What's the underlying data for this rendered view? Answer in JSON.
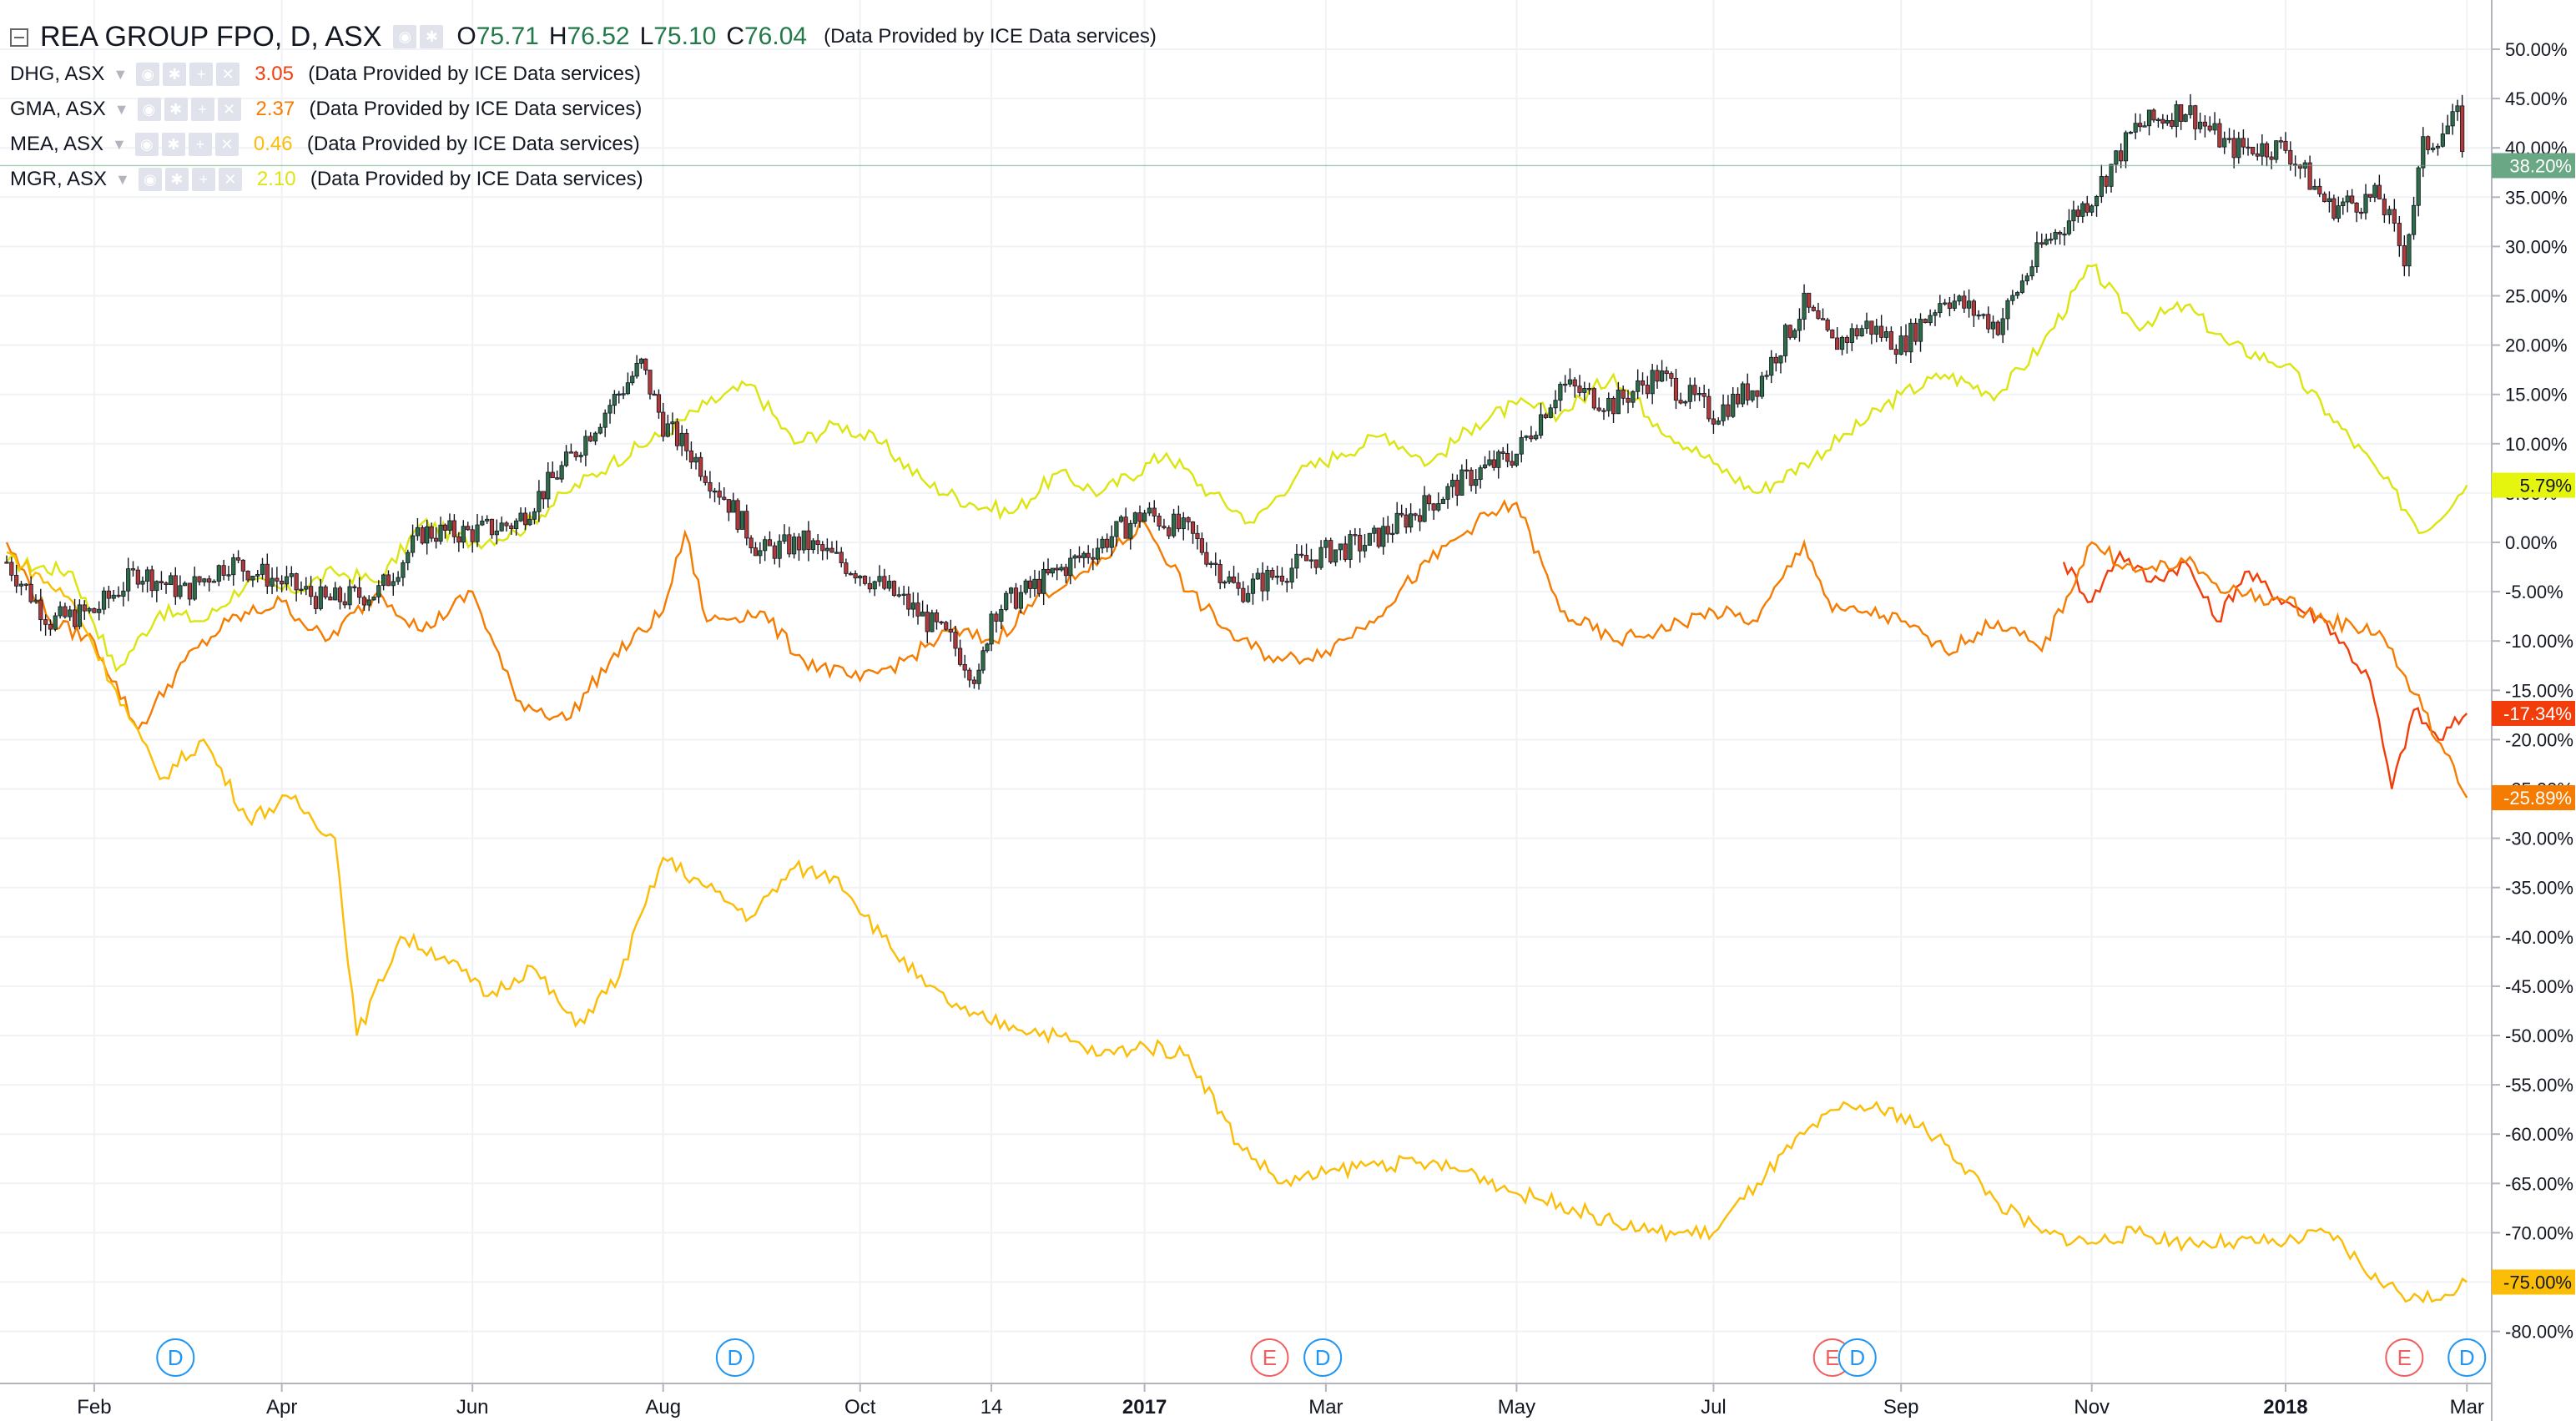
{
  "header": {
    "title": "REA GROUP FPO, D, ASX",
    "ohlc": [
      {
        "label": "O",
        "value": "75.71"
      },
      {
        "label": "H",
        "value": "76.52"
      },
      {
        "label": "L",
        "value": "75.10"
      },
      {
        "label": "C",
        "value": "76.04"
      }
    ],
    "provider": "(Data Provided by ICE Data services)"
  },
  "comparisons": [
    {
      "symbol": "DHG, ASX",
      "value": "3.05",
      "color": "#f23d0a",
      "provider": "(Data Provided by ICE Data services)"
    },
    {
      "symbol": "GMA, ASX",
      "value": "2.37",
      "color": "#f57c00",
      "provider": "(Data Provided by ICE Data services)"
    },
    {
      "symbol": "MEA, ASX",
      "value": "0.46",
      "color": "#fbbd05",
      "provider": "(Data Provided by ICE Data services)"
    },
    {
      "symbol": "MGR, ASX",
      "value": "2.10",
      "color": "#dbe50f",
      "provider": "(Data Provided by ICE Data services)"
    }
  ],
  "price_badges": [
    {
      "text": "38.20%",
      "value": 38.2,
      "bg": "#6aa784",
      "fg": "#ffffff"
    },
    {
      "text": "5.79%",
      "value": 5.79,
      "bg": "#e6f50d",
      "fg": "#131722"
    },
    {
      "text": "-17.34%",
      "value": -17.34,
      "bg": "#f23d0a",
      "fg": "#ffffff"
    },
    {
      "text": "-25.89%",
      "value": -25.89,
      "bg": "#f57c00",
      "fg": "#ffffff"
    },
    {
      "text": "-75.00%",
      "value": -75.0,
      "bg": "#fbbd05",
      "fg": "#131722"
    }
  ],
  "event_markers": [
    {
      "label": "D",
      "x": "2016-02-27",
      "kind": "dividend"
    },
    {
      "label": "D",
      "x": "2016-08-24",
      "kind": "dividend"
    },
    {
      "label": "E",
      "x": "2017-02-11",
      "kind": "earnings"
    },
    {
      "label": "D",
      "x": "2017-02-28",
      "kind": "dividend"
    },
    {
      "label": "E",
      "x": "2017-08-10",
      "kind": "earnings"
    },
    {
      "label": "D",
      "x": "2017-08-18",
      "kind": "dividend"
    },
    {
      "label": "E",
      "x": "2018-02-09",
      "kind": "earnings"
    },
    {
      "label": "D",
      "x": "2018-03-01",
      "kind": "dividend"
    }
  ],
  "colors": {
    "up_candle": "#2e6b47",
    "down_candle": "#b23939",
    "dividend_marker": "#2196f3",
    "earnings_marker": "#f06060",
    "grid": "#f0f2f5",
    "axis_text": "#131722"
  },
  "chart_data": {
    "type": "line",
    "title": "REA GROUP FPO, D, ASX",
    "ylabel": "",
    "xlabel": "",
    "y_scale": "percent",
    "ylim": [
      -82,
      52
    ],
    "xlim": [
      "2016-01-04",
      "2018-03-02"
    ],
    "y_ticks": [
      50,
      45,
      40,
      35,
      30,
      25,
      20,
      15,
      10,
      5,
      0,
      -5,
      -10,
      -15,
      -20,
      -25,
      -30,
      -35,
      -40,
      -45,
      -50,
      -55,
      -60,
      -65,
      -70,
      -75,
      -80
    ],
    "y_tick_labels": [
      "50.00%",
      "45.00%",
      "40.00%",
      "35.00%",
      "30.00%",
      "25.00%",
      "20.00%",
      "15.00%",
      "10.00%",
      "5.00%",
      "0.00%",
      "-5.00%",
      "-10.00%",
      "-15.00%",
      "-20.00%",
      "-25.00%",
      "-30.00%",
      "-35.00%",
      "-40.00%",
      "-45.00%",
      "-50.00%",
      "-55.00%",
      "-60.00%",
      "-65.00%",
      "-70.00%",
      "-75.00%",
      "-80.00%"
    ],
    "x_ticks": [
      {
        "label": "Feb",
        "x": "2016-02-01"
      },
      {
        "label": "Apr",
        "x": "2016-04-01"
      },
      {
        "label": "Jun",
        "x": "2016-06-01"
      },
      {
        "label": "Aug",
        "x": "2016-08-01"
      },
      {
        "label": "Oct",
        "x": "2016-10-03"
      },
      {
        "label": "14",
        "x": "2016-11-14"
      },
      {
        "label": "2017",
        "x": "2017-01-02",
        "bold": true
      },
      {
        "label": "Mar",
        "x": "2017-03-01"
      },
      {
        "label": "May",
        "x": "2017-05-01"
      },
      {
        "label": "Jul",
        "x": "2017-07-03"
      },
      {
        "label": "Sep",
        "x": "2017-09-01"
      },
      {
        "label": "Nov",
        "x": "2017-11-01"
      },
      {
        "label": "2018",
        "x": "2018-01-02",
        "bold": true
      },
      {
        "label": "Mar",
        "x": "2018-03-01"
      }
    ],
    "grid": true,
    "main_series": {
      "name": "REA GROUP FPO, D, ASX",
      "style": "candlestick",
      "x": [
        "2016-01-04",
        "2016-01-18",
        "2016-02-01",
        "2016-02-15",
        "2016-03-01",
        "2016-03-15",
        "2016-04-01",
        "2016-04-15",
        "2016-05-02",
        "2016-05-16",
        "2016-06-01",
        "2016-06-15",
        "2016-07-01",
        "2016-07-15",
        "2016-07-25",
        "2016-08-01",
        "2016-08-10",
        "2016-08-22",
        "2016-09-01",
        "2016-09-15",
        "2016-10-03",
        "2016-10-17",
        "2016-11-01",
        "2016-11-10",
        "2016-11-14",
        "2016-11-25",
        "2016-12-05",
        "2016-12-15",
        "2017-01-02",
        "2017-01-16",
        "2017-02-01",
        "2017-02-15",
        "2017-03-01",
        "2017-03-15",
        "2017-04-03",
        "2017-04-18",
        "2017-05-01",
        "2017-05-15",
        "2017-06-01",
        "2017-06-15",
        "2017-07-03",
        "2017-07-17",
        "2017-08-01",
        "2017-08-10",
        "2017-08-21",
        "2017-09-01",
        "2017-09-15",
        "2017-10-02",
        "2017-10-16",
        "2017-11-01",
        "2017-11-15",
        "2017-12-01",
        "2017-12-15",
        "2018-01-02",
        "2018-01-16",
        "2018-02-01",
        "2018-02-09",
        "2018-02-15",
        "2018-02-26",
        "2018-03-01"
      ],
      "values": [
        -2,
        -8,
        -7,
        -3,
        -5,
        -2,
        -4,
        -6,
        -5,
        1,
        1,
        2,
        8,
        14,
        18,
        12,
        9,
        4,
        -1,
        0,
        -3,
        -6,
        -10,
        -14,
        -7,
        -5,
        -3,
        -1,
        3,
        1,
        -5,
        -3,
        -1,
        0,
        4,
        7,
        9,
        16,
        14,
        17,
        13,
        16,
        24,
        20,
        22,
        20,
        25,
        22,
        30,
        35,
        42,
        44,
        40,
        40,
        34,
        35,
        29,
        40,
        43,
        38.2
      ]
    },
    "series": [
      {
        "name": "MGR, ASX",
        "color": "#dbe50f",
        "x": [
          "2016-01-04",
          "2016-01-25",
          "2016-02-08",
          "2016-02-22",
          "2016-03-07",
          "2016-03-21",
          "2016-04-04",
          "2016-04-18",
          "2016-05-02",
          "2016-05-16",
          "2016-06-01",
          "2016-06-15",
          "2016-07-01",
          "2016-07-15",
          "2016-08-01",
          "2016-08-15",
          "2016-08-29",
          "2016-09-12",
          "2016-09-26",
          "2016-10-10",
          "2016-10-24",
          "2016-11-07",
          "2016-11-21",
          "2016-12-05",
          "2016-12-19",
          "2017-01-09",
          "2017-01-23",
          "2017-02-06",
          "2017-02-20",
          "2017-03-06",
          "2017-03-20",
          "2017-04-03",
          "2017-04-18",
          "2017-05-01",
          "2017-05-15",
          "2017-06-01",
          "2017-06-15",
          "2017-07-03",
          "2017-07-17",
          "2017-08-01",
          "2017-08-15",
          "2017-09-01",
          "2017-09-15",
          "2017-10-02",
          "2017-10-16",
          "2017-11-01",
          "2017-11-15",
          "2017-12-01",
          "2017-12-15",
          "2018-01-02",
          "2018-01-16",
          "2018-02-01",
          "2018-02-15",
          "2018-03-01"
        ],
        "values": [
          -2,
          -3,
          -13,
          -7,
          -8,
          -4,
          -5,
          -3,
          -4,
          2,
          0,
          1,
          5,
          8,
          11,
          14,
          16,
          10,
          12,
          10,
          6,
          4,
          3,
          7,
          5,
          9,
          5,
          2,
          7,
          9,
          11,
          8,
          12,
          14,
          13,
          17,
          12,
          8,
          5,
          8,
          11,
          15,
          17,
          15,
          20,
          28,
          22,
          24,
          20,
          18,
          13,
          7,
          1,
          5.79
        ]
      },
      {
        "name": "DHG, ASX",
        "color": "#f23d0a",
        "x": [
          "2017-10-23",
          "2017-11-01",
          "2017-11-10",
          "2017-11-20",
          "2017-12-01",
          "2017-12-11",
          "2017-12-20",
          "2018-01-02",
          "2018-01-15",
          "2018-01-29",
          "2018-02-05",
          "2018-02-12",
          "2018-02-20",
          "2018-03-01"
        ],
        "values": [
          -2,
          -6,
          -1,
          -4,
          -2,
          -8,
          -3,
          -6,
          -8,
          -14,
          -25,
          -17,
          -20,
          -17.34
        ]
      },
      {
        "name": "GMA, ASX",
        "color": "#f57c00",
        "x": [
          "2016-01-04",
          "2016-01-18",
          "2016-02-01",
          "2016-02-15",
          "2016-03-01",
          "2016-03-15",
          "2016-04-01",
          "2016-04-15",
          "2016-05-02",
          "2016-05-16",
          "2016-06-01",
          "2016-06-15",
          "2016-07-01",
          "2016-07-15",
          "2016-08-01",
          "2016-08-08",
          "2016-08-15",
          "2016-09-01",
          "2016-09-15",
          "2016-10-03",
          "2016-10-17",
          "2016-11-01",
          "2016-11-15",
          "2016-12-01",
          "2016-12-15",
          "2017-01-02",
          "2017-01-16",
          "2017-02-01",
          "2017-02-15",
          "2017-03-01",
          "2017-03-15",
          "2017-04-03",
          "2017-04-18",
          "2017-05-01",
          "2017-05-15",
          "2017-06-01",
          "2017-06-15",
          "2017-07-03",
          "2017-07-17",
          "2017-08-01",
          "2017-08-10",
          "2017-08-21",
          "2017-09-01",
          "2017-09-15",
          "2017-10-02",
          "2017-10-16",
          "2017-11-01",
          "2017-11-15",
          "2017-12-01",
          "2017-12-15",
          "2018-01-02",
          "2018-01-16",
          "2018-02-01",
          "2018-02-15",
          "2018-03-01"
        ],
        "values": [
          0,
          -8,
          -10,
          -19,
          -12,
          -8,
          -6,
          -10,
          -5,
          -9,
          -5,
          -16,
          -18,
          -12,
          -7,
          1,
          -8,
          -7,
          -12,
          -14,
          -12,
          -9,
          -10,
          -5,
          -3,
          2,
          -5,
          -10,
          -12,
          -11,
          -8,
          -2,
          2,
          4,
          -7,
          -10,
          -9,
          -7,
          -8,
          0,
          -7,
          -7,
          -8,
          -11,
          -8,
          -11,
          0,
          -3,
          -2,
          -5,
          -6,
          -8,
          -9,
          -17,
          -25.89
        ]
      },
      {
        "name": "MEA, ASX",
        "color": "#fbbd05",
        "x": [
          "2016-01-04",
          "2016-01-25",
          "2016-02-08",
          "2016-02-22",
          "2016-03-07",
          "2016-03-21",
          "2016-04-04",
          "2016-04-18",
          "2016-04-25",
          "2016-05-09",
          "2016-05-23",
          "2016-06-06",
          "2016-06-20",
          "2016-07-04",
          "2016-07-18",
          "2016-08-01",
          "2016-08-15",
          "2016-08-29",
          "2016-09-12",
          "2016-09-26",
          "2016-10-10",
          "2016-10-24",
          "2016-11-07",
          "2016-11-21",
          "2016-12-05",
          "2016-12-19",
          "2017-01-02",
          "2017-01-16",
          "2017-02-01",
          "2017-02-15",
          "2017-03-01",
          "2017-03-15",
          "2017-04-03",
          "2017-04-18",
          "2017-05-01",
          "2017-05-15",
          "2017-06-01",
          "2017-06-15",
          "2017-07-03",
          "2017-07-17",
          "2017-08-01",
          "2017-08-15",
          "2017-09-01",
          "2017-09-15",
          "2017-10-02",
          "2017-10-16",
          "2017-11-01",
          "2017-11-15",
          "2017-12-01",
          "2017-12-15",
          "2018-01-02",
          "2018-01-16",
          "2018-02-01",
          "2018-02-15",
          "2018-03-01"
        ],
        "values": [
          -1,
          -6,
          -15,
          -24,
          -20,
          -28,
          -26,
          -30,
          -50,
          -40,
          -42,
          -46,
          -43,
          -49,
          -44,
          -32,
          -35,
          -38,
          -33,
          -34,
          -40,
          -45,
          -48,
          -49,
          -50,
          -52,
          -51,
          -52,
          -61,
          -65,
          -64,
          -63,
          -63,
          -64,
          -66,
          -67,
          -69,
          -70,
          -70,
          -65,
          -60,
          -57,
          -58,
          -61,
          -67,
          -70,
          -71,
          -70,
          -71,
          -71,
          -71,
          -70,
          -75,
          -77,
          -75
        ]
      }
    ]
  }
}
